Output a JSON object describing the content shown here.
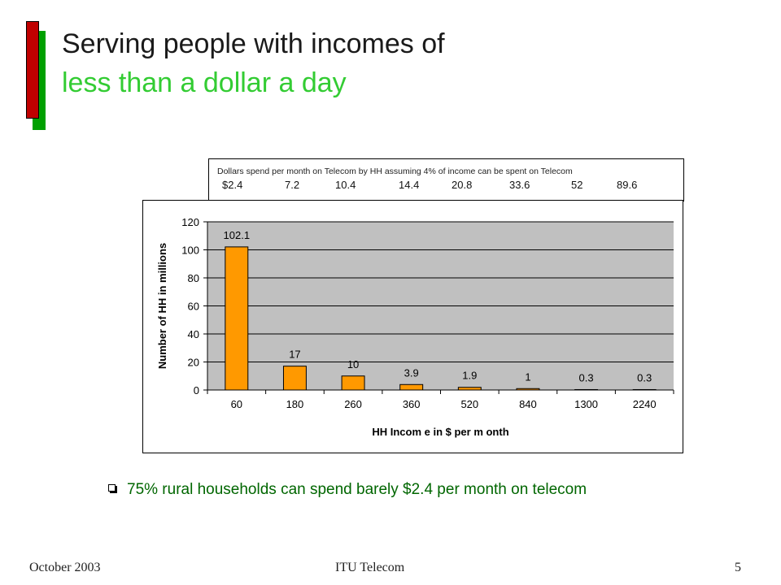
{
  "slide": {
    "title_line1": "Serving people with incomes of",
    "title_line2": "less than a dollar a day",
    "bullet": "75% rural households can spend barely $2.4 per month on telecom",
    "footer_left": "October 2003",
    "footer_center": "ITU Telecom",
    "footer_right": "5"
  },
  "info_box": {
    "caption": "Dollars spend per  month on Telecom  by HH   assuming 4% of income can be spent on Telecom",
    "values": [
      "$2.4",
      "7.2",
      "10.4",
      "14.4",
      "20.8",
      "33.6",
      "52",
      "89.6"
    ]
  },
  "colors": {
    "bar_fill": "#ff9900",
    "plot_bg": "#c0c0c0",
    "title_accent": "#33cc33",
    "bullet_text": "#006600"
  },
  "chart_data": {
    "type": "bar",
    "categories": [
      "60",
      "180",
      "260",
      "360",
      "520",
      "840",
      "1300",
      "2240"
    ],
    "values": [
      102.1,
      17,
      10,
      3.9,
      1.9,
      1,
      0.3,
      0.3
    ],
    "data_labels": [
      "102.1",
      "17",
      "10",
      "3.9",
      "1.9",
      "1",
      "0.3",
      "0.3"
    ],
    "xlabel": "HH Incom e in $ per m onth",
    "ylabel": "Number of HH in millions",
    "ylim": [
      0,
      120
    ],
    "yticks": [
      0,
      20,
      40,
      60,
      80,
      100,
      120
    ],
    "grid": true,
    "legend": "none"
  }
}
